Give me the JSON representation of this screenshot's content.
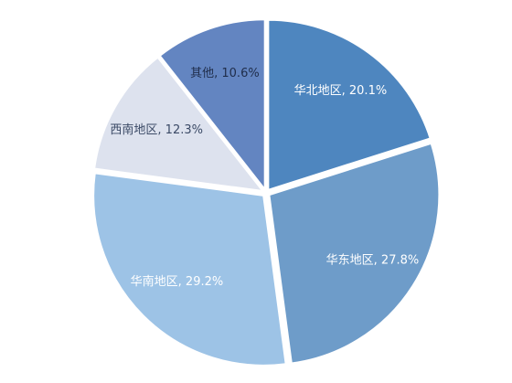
{
  "chart_data": {
    "type": "pie",
    "title": "",
    "slices": [
      {
        "label": "华北地区, 20.1%",
        "category": "华北地区",
        "value": 20.1,
        "color": "#4E86BF",
        "label_color": "#FFFFFF"
      },
      {
        "label": "华东地区, 27.8%",
        "category": "华东地区",
        "value": 27.8,
        "color": "#6E9CC9",
        "label_color": "#FFFFFF"
      },
      {
        "label": "华南地区, 29.2%",
        "category": "华南地区",
        "value": 29.2,
        "color": "#9DC3E6",
        "label_color": "#FFFFFF"
      },
      {
        "label": "西南地区, 12.3%",
        "category": "西南地区",
        "value": 12.3,
        "color": "#DDE2EE",
        "label_color": "#3B4A66"
      },
      {
        "label": "其他, 10.6%",
        "category": "其他",
        "value": 10.6,
        "color": "#6385C1",
        "label_color": "#1F2D4A"
      }
    ],
    "start_angle_deg": 0,
    "direction": "clockwise",
    "legend": "none"
  }
}
